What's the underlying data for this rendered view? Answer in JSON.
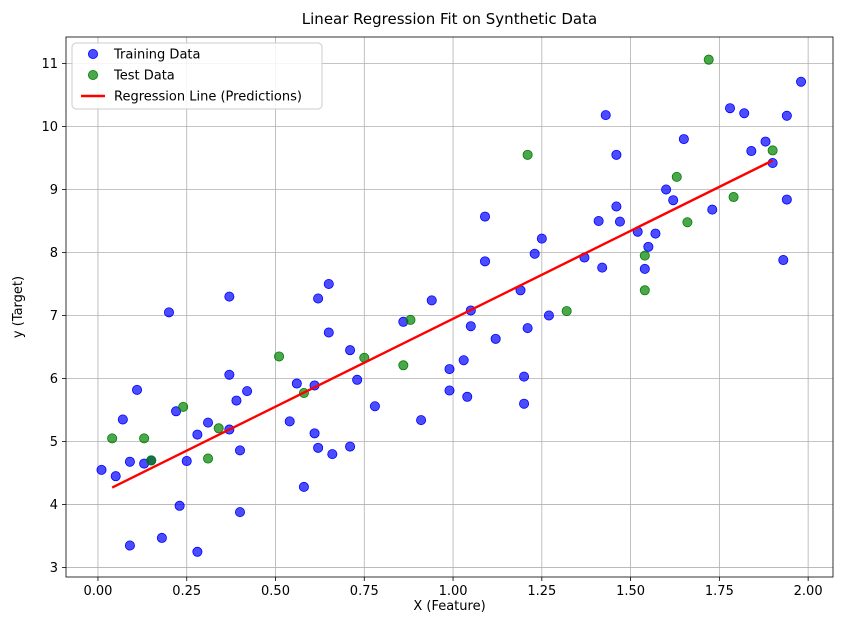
{
  "chart_data": {
    "type": "scatter",
    "title": "Linear Regression Fit on Synthetic Data",
    "xlabel": "X (Feature)",
    "ylabel": "y (Target)",
    "xlim": [
      -0.09,
      2.07
    ],
    "ylim": [
      2.85,
      11.42
    ],
    "xticks": [
      0.0,
      0.25,
      0.5,
      0.75,
      1.0,
      1.25,
      1.5,
      1.75,
      2.0
    ],
    "xtick_labels": [
      "0.00",
      "0.25",
      "0.50",
      "0.75",
      "1.00",
      "1.25",
      "1.50",
      "1.75",
      "2.00"
    ],
    "yticks": [
      3,
      4,
      5,
      6,
      7,
      8,
      9,
      10,
      11
    ],
    "ytick_labels": [
      "3",
      "4",
      "5",
      "6",
      "7",
      "8",
      "9",
      "10",
      "11"
    ],
    "grid": true,
    "legend_position": "top-left",
    "series": [
      {
        "name": "Training Data",
        "kind": "scatter",
        "color": "#0000ff",
        "points": [
          [
            0.01,
            4.55
          ],
          [
            0.05,
            4.45
          ],
          [
            0.07,
            5.35
          ],
          [
            0.09,
            4.68
          ],
          [
            0.09,
            3.35
          ],
          [
            0.11,
            5.82
          ],
          [
            0.13,
            4.65
          ],
          [
            0.15,
            4.7
          ],
          [
            0.18,
            3.47
          ],
          [
            0.2,
            7.05
          ],
          [
            0.22,
            5.48
          ],
          [
            0.23,
            3.98
          ],
          [
            0.25,
            4.69
          ],
          [
            0.28,
            5.11
          ],
          [
            0.28,
            3.25
          ],
          [
            0.31,
            5.3
          ],
          [
            0.37,
            7.3
          ],
          [
            0.37,
            6.06
          ],
          [
            0.37,
            5.19
          ],
          [
            0.39,
            5.65
          ],
          [
            0.4,
            4.86
          ],
          [
            0.4,
            3.88
          ],
          [
            0.42,
            5.8
          ],
          [
            0.54,
            5.32
          ],
          [
            0.56,
            5.92
          ],
          [
            0.58,
            4.28
          ],
          [
            0.61,
            5.89
          ],
          [
            0.61,
            5.13
          ],
          [
            0.62,
            7.27
          ],
          [
            0.62,
            4.9
          ],
          [
            0.65,
            7.5
          ],
          [
            0.65,
            6.73
          ],
          [
            0.66,
            4.8
          ],
          [
            0.71,
            6.45
          ],
          [
            0.71,
            4.92
          ],
          [
            0.73,
            5.98
          ],
          [
            0.78,
            5.56
          ],
          [
            0.86,
            6.9
          ],
          [
            0.91,
            5.34
          ],
          [
            0.94,
            7.24
          ],
          [
            0.99,
            6.15
          ],
          [
            0.99,
            5.81
          ],
          [
            1.03,
            6.29
          ],
          [
            1.04,
            5.71
          ],
          [
            1.05,
            7.08
          ],
          [
            1.05,
            6.83
          ],
          [
            1.09,
            8.57
          ],
          [
            1.09,
            7.86
          ],
          [
            1.12,
            6.63
          ],
          [
            1.19,
            7.4
          ],
          [
            1.2,
            6.03
          ],
          [
            1.2,
            5.6
          ],
          [
            1.21,
            6.8
          ],
          [
            1.23,
            7.98
          ],
          [
            1.25,
            8.22
          ],
          [
            1.27,
            7.0
          ],
          [
            1.37,
            7.92
          ],
          [
            1.41,
            8.5
          ],
          [
            1.42,
            7.76
          ],
          [
            1.43,
            10.18
          ],
          [
            1.46,
            9.55
          ],
          [
            1.46,
            8.73
          ],
          [
            1.47,
            8.49
          ],
          [
            1.52,
            8.33
          ],
          [
            1.54,
            7.74
          ],
          [
            1.55,
            8.09
          ],
          [
            1.57,
            8.3
          ],
          [
            1.6,
            9.0
          ],
          [
            1.62,
            8.83
          ],
          [
            1.65,
            9.8
          ],
          [
            1.73,
            8.68
          ],
          [
            1.78,
            10.29
          ],
          [
            1.82,
            10.21
          ],
          [
            1.84,
            9.61
          ],
          [
            1.88,
            9.76
          ],
          [
            1.9,
            9.42
          ],
          [
            1.93,
            7.88
          ],
          [
            1.94,
            8.84
          ],
          [
            1.94,
            10.17
          ],
          [
            1.98,
            10.71
          ]
        ]
      },
      {
        "name": "Test Data",
        "kind": "scatter",
        "color": "#008000",
        "points": [
          [
            0.04,
            5.05
          ],
          [
            0.13,
            5.05
          ],
          [
            0.15,
            4.7
          ],
          [
            0.24,
            5.55
          ],
          [
            0.31,
            4.73
          ],
          [
            0.34,
            5.21
          ],
          [
            0.51,
            6.35
          ],
          [
            0.58,
            5.77
          ],
          [
            0.75,
            6.33
          ],
          [
            0.86,
            6.21
          ],
          [
            0.88,
            6.93
          ],
          [
            1.21,
            9.55
          ],
          [
            1.32,
            7.07
          ],
          [
            1.54,
            7.4
          ],
          [
            1.54,
            7.95
          ],
          [
            1.63,
            9.2
          ],
          [
            1.66,
            8.48
          ],
          [
            1.72,
            11.06
          ],
          [
            1.79,
            8.88
          ],
          [
            1.9,
            9.62
          ]
        ]
      },
      {
        "name": "Regression Line (Predictions)",
        "kind": "line",
        "color": "#ff0000",
        "x": [
          0.04,
          1.9
        ],
        "y": [
          4.27,
          9.46
        ]
      }
    ]
  }
}
